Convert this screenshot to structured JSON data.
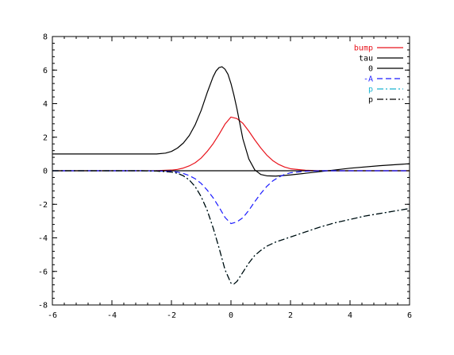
{
  "chart_data": {
    "type": "line",
    "title": "",
    "xlabel": "",
    "ylabel": "",
    "xlim": [
      -6,
      6
    ],
    "ylim": [
      -8,
      8
    ],
    "xticks": [
      "-6",
      "-4",
      "-2",
      "0",
      "2",
      "4",
      "6"
    ],
    "yticks": [
      "8",
      "6",
      "4",
      "2",
      "0",
      "-2",
      "-4",
      "-6",
      "-8"
    ],
    "grid": false,
    "legend_position": "top-right",
    "series": [
      {
        "name": "bump",
        "color": "#e8141d",
        "dash": "solid",
        "x": [
          -6,
          -3,
          -2.5,
          -2,
          -1.8,
          -1.6,
          -1.4,
          -1.2,
          -1.0,
          -0.8,
          -0.6,
          -0.4,
          -0.2,
          0,
          0.2,
          0.4,
          0.6,
          0.8,
          1.0,
          1.2,
          1.4,
          1.6,
          1.8,
          2.0,
          2.5,
          3,
          6
        ],
        "y": [
          0,
          0,
          0.01,
          0.04,
          0.08,
          0.16,
          0.29,
          0.48,
          0.76,
          1.15,
          1.61,
          2.17,
          2.78,
          3.2,
          3.11,
          2.83,
          2.36,
          1.84,
          1.36,
          0.94,
          0.61,
          0.38,
          0.22,
          0.12,
          0.03,
          0,
          0
        ]
      },
      {
        "name": "tau",
        "color": "#000000",
        "dash": "solid",
        "x": [
          -6,
          -2.5,
          -2.2,
          -2.0,
          -1.8,
          -1.6,
          -1.4,
          -1.2,
          -1.0,
          -0.8,
          -0.6,
          -0.5,
          -0.4,
          -0.3,
          -0.2,
          -0.1,
          0,
          0.1,
          0.2,
          0.3,
          0.4,
          0.6,
          0.8,
          1.0,
          1.2,
          1.5,
          2.0,
          2.5,
          3,
          3.5,
          4,
          5,
          6
        ],
        "y": [
          1.0,
          1.0,
          1.05,
          1.15,
          1.35,
          1.65,
          2.1,
          2.75,
          3.6,
          4.65,
          5.6,
          5.95,
          6.15,
          6.2,
          6.05,
          5.75,
          5.2,
          4.5,
          3.7,
          2.8,
          1.9,
          0.7,
          0.05,
          -0.22,
          -0.3,
          -0.32,
          -0.25,
          -0.15,
          -0.05,
          0.05,
          0.15,
          0.3,
          0.42
        ]
      },
      {
        "name": "0",
        "color": "#000000",
        "dash": "solid",
        "x": [
          -6,
          6
        ],
        "y": [
          0,
          0
        ]
      },
      {
        "name": "-A",
        "color": "#1a1aff",
        "dash": "dash",
        "x": [
          -6,
          -3,
          -2.5,
          -2,
          -1.8,
          -1.6,
          -1.4,
          -1.2,
          -1.0,
          -0.8,
          -0.6,
          -0.4,
          -0.2,
          0,
          0.2,
          0.4,
          0.6,
          0.8,
          1.0,
          1.2,
          1.4,
          1.6,
          1.8,
          2.0,
          2.5,
          3,
          6
        ],
        "y": [
          0,
          0,
          -0.01,
          -0.04,
          -0.08,
          -0.16,
          -0.29,
          -0.48,
          -0.76,
          -1.15,
          -1.61,
          -2.17,
          -2.78,
          -3.15,
          -3.05,
          -2.8,
          -2.36,
          -1.84,
          -1.36,
          -0.94,
          -0.61,
          -0.38,
          -0.22,
          -0.12,
          -0.03,
          0,
          0
        ]
      },
      {
        "name": "p",
        "color": "#19b5d1",
        "dash": "dashdot",
        "x": [
          -6,
          -3,
          -2.5,
          -2,
          -1.8,
          -1.6,
          -1.4,
          -1.2,
          -1.0,
          -0.8,
          -0.6,
          -0.4,
          -0.2,
          0,
          0.1,
          0.2,
          0.4,
          0.6,
          0.8,
          1.0,
          1.2,
          1.5,
          2.0,
          2.5,
          3,
          3.5,
          4,
          4.5,
          5,
          5.5,
          6
        ],
        "y": [
          0,
          0,
          -0.02,
          -0.08,
          -0.15,
          -0.3,
          -0.55,
          -0.95,
          -1.55,
          -2.35,
          -3.4,
          -4.6,
          -5.9,
          -6.7,
          -6.75,
          -6.6,
          -6.05,
          -5.5,
          -5.05,
          -4.75,
          -4.5,
          -4.25,
          -3.95,
          -3.65,
          -3.35,
          -3.1,
          -2.9,
          -2.7,
          -2.55,
          -2.4,
          -2.25
        ]
      },
      {
        "name": "p",
        "color": "#000000",
        "dash": "dashdot",
        "x": [
          -6,
          -3,
          -2.5,
          -2,
          -1.8,
          -1.6,
          -1.4,
          -1.2,
          -1.0,
          -0.8,
          -0.6,
          -0.4,
          -0.2,
          0,
          0.1,
          0.2,
          0.4,
          0.6,
          0.8,
          1.0,
          1.2,
          1.5,
          2.0,
          2.5,
          3,
          3.5,
          4,
          4.5,
          5,
          5.5,
          6
        ],
        "y": [
          0,
          0,
          -0.02,
          -0.08,
          -0.15,
          -0.3,
          -0.55,
          -0.95,
          -1.55,
          -2.35,
          -3.4,
          -4.6,
          -5.9,
          -6.7,
          -6.75,
          -6.6,
          -6.05,
          -5.5,
          -5.05,
          -4.75,
          -4.5,
          -4.25,
          -3.95,
          -3.65,
          -3.35,
          -3.1,
          -2.9,
          -2.7,
          -2.55,
          -2.4,
          -2.25
        ]
      }
    ]
  }
}
